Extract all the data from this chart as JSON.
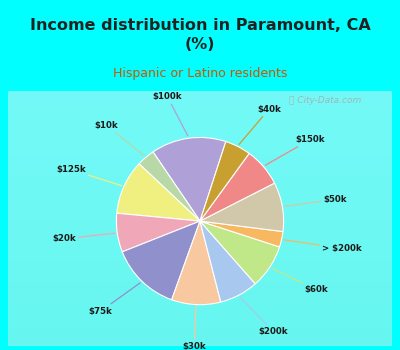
{
  "title": "Income distribution in Paramount, CA\n(%)",
  "subtitle": "Hispanic or Latino residents",
  "labels": [
    "$100k",
    "$10k",
    "$125k",
    "$20k",
    "$75k",
    "$30k",
    "$200k",
    "$60k",
    "> $200k",
    "$50k",
    "$150k",
    "$40k"
  ],
  "sizes": [
    14.5,
    3.5,
    10.5,
    7.5,
    13.5,
    9.5,
    7.5,
    8.5,
    3.0,
    9.5,
    7.5,
    5.0
  ],
  "colors": [
    "#b0a0d8",
    "#b8d8a8",
    "#f0f080",
    "#f0a8b8",
    "#9090cc",
    "#f8c8a0",
    "#a8c8f0",
    "#c0e888",
    "#f8b860",
    "#d0c8a8",
    "#f08888",
    "#c8a030"
  ],
  "bg_color": "#00ffff",
  "chart_bg_top": "#e8f5f0",
  "chart_bg_bottom": "#d0ede0",
  "title_color": "#222222",
  "subtitle_color": "#cc5500",
  "startangle": 72,
  "watermark": "City-Data.com"
}
